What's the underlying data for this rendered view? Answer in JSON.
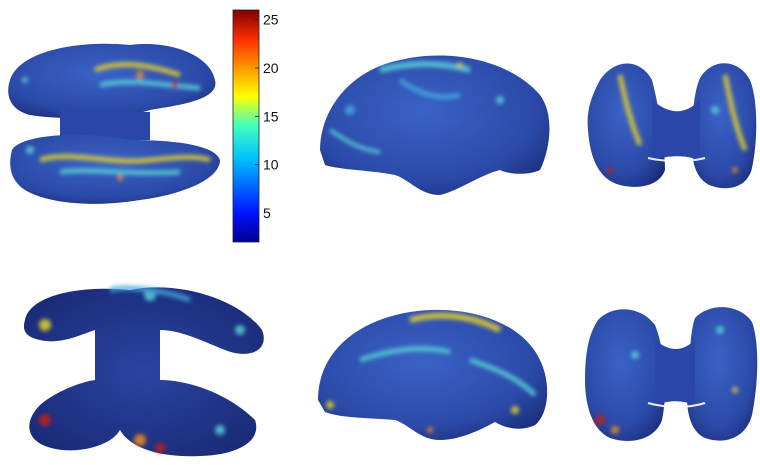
{
  "figure": {
    "colormap": "jet",
    "colorbar": {
      "ticks": [
        {
          "value": 5,
          "label": "5"
        },
        {
          "value": 10,
          "label": "10"
        },
        {
          "value": 15,
          "label": "15"
        },
        {
          "value": 20,
          "label": "20"
        },
        {
          "value": 25,
          "label": "25"
        }
      ],
      "range": [
        2,
        26
      ]
    },
    "colors": {
      "dark_blue": "#1c2f8c",
      "blue": "#2e5cc0",
      "light_blue": "#43a8e0",
      "cyan": "#59d1d8",
      "yellow": "#e8d22a",
      "orange": "#f08a1e",
      "red": "#c41a16"
    },
    "views": [
      {
        "row": 1,
        "view": "top"
      },
      {
        "row": 1,
        "view": "lateral"
      },
      {
        "row": 1,
        "view": "front"
      },
      {
        "row": 2,
        "view": "bottom"
      },
      {
        "row": 2,
        "view": "lateral"
      },
      {
        "row": 2,
        "view": "front"
      }
    ]
  }
}
